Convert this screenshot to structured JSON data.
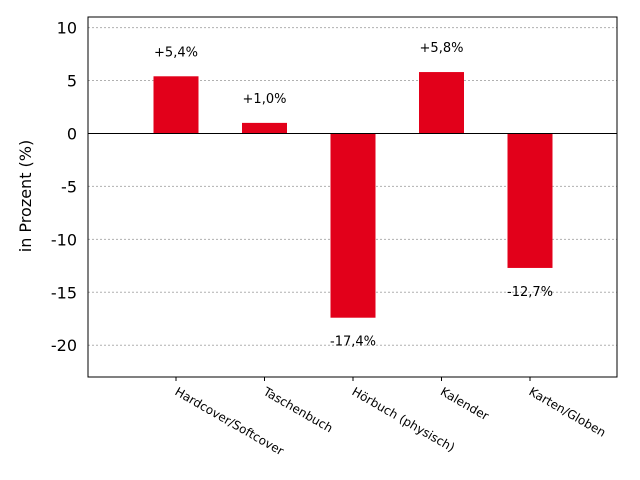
{
  "chart_data": {
    "type": "bar",
    "categories": [
      "Hardcover/Softcover",
      "Taschenbuch",
      "Hörbuch (physisch)",
      "Kalender",
      "Karten/Globen"
    ],
    "values": [
      5.4,
      1.0,
      -17.4,
      5.8,
      -12.7
    ],
    "data_labels": [
      "+5,4%",
      "+1,0%",
      "-17,4%",
      "+5,8%",
      "-12,7%"
    ],
    "title": "",
    "xlabel": "",
    "ylabel": "in Prozent (%)",
    "ylim": [
      -23,
      11
    ],
    "yticks": [
      10,
      5,
      0,
      -5,
      -10,
      -15,
      -20
    ],
    "ytick_labels": [
      "10",
      "5",
      "0",
      "-5",
      "-10",
      "-15",
      "-20"
    ],
    "grid": "horizontal dotted",
    "bar_color": "#e2001a"
  }
}
